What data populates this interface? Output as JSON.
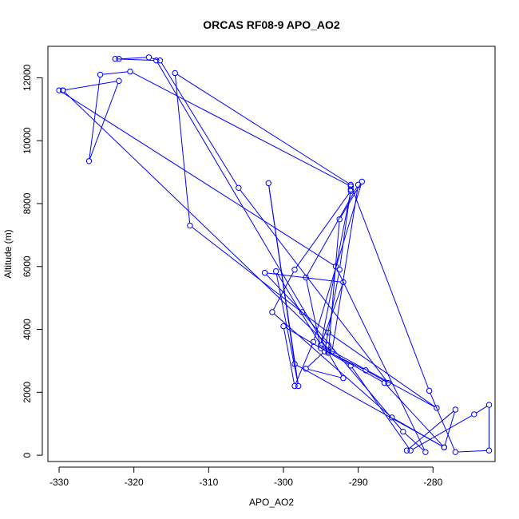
{
  "chart_data": {
    "type": "line",
    "title": "ORCAS RF08-9 APO_AO2",
    "xlabel": "APO_AO2",
    "ylabel": "Altitude (m)",
    "xlim": [
      -331.5,
      -271.7
    ],
    "ylim": [
      -200,
      13000
    ],
    "xticks": [
      -330,
      -320,
      -310,
      -300,
      -290,
      -280
    ],
    "yticks": [
      0,
      2000,
      4000,
      6000,
      8000,
      10000,
      12000
    ],
    "series": [
      {
        "color": "#0000ff",
        "marker": "open-circle",
        "points": [
          [
            -329.5,
            11600
          ],
          [
            -322.0,
            11900
          ],
          [
            -326.0,
            9350
          ],
          [
            -324.5,
            12100
          ],
          [
            -320.5,
            12200
          ],
          [
            -291.0,
            8550
          ],
          [
            -291.0,
            8450
          ],
          [
            -292.5,
            5900
          ],
          [
            -294.5,
            3300
          ],
          [
            -297.0,
            2750
          ],
          [
            -292.0,
            2450
          ],
          [
            -294.0,
            3250
          ],
          [
            -292.5,
            7500
          ],
          [
            -289.5,
            8700
          ],
          [
            -296.0,
            3600
          ],
          [
            -298.5,
            2200
          ],
          [
            -300.0,
            4100
          ],
          [
            -291.0,
            2850
          ],
          [
            -283.0,
            150
          ],
          [
            -274.5,
            1300
          ],
          [
            -272.5,
            1600
          ],
          [
            -272.5,
            150
          ],
          [
            -277.0,
            100
          ],
          [
            -280.5,
            2050
          ],
          [
            -291.0,
            8600
          ],
          [
            -314.5,
            12150
          ],
          [
            -312.5,
            7300
          ],
          [
            -294.0,
            3900
          ],
          [
            -279.5,
            1500
          ],
          [
            -295.0,
            3500
          ],
          [
            -291.0,
            8400
          ],
          [
            -298.5,
            5900
          ],
          [
            -301.5,
            4550
          ],
          [
            -285.5,
            1200
          ],
          [
            -278.5,
            250
          ],
          [
            -298.5,
            2900
          ],
          [
            -302.0,
            8650
          ],
          [
            -298.0,
            2200
          ],
          [
            -301.0,
            5850
          ],
          [
            -295.0,
            3500
          ],
          [
            -292.0,
            5500
          ],
          [
            -302.5,
            5800
          ],
          [
            -297.5,
            4550
          ],
          [
            -284.0,
            750
          ],
          [
            -281.0,
            100
          ],
          [
            -293.0,
            6000
          ],
          [
            -330.0,
            11600
          ],
          [
            -329.5,
            11600
          ],
          [
            -294.0,
            3500
          ],
          [
            -293.5,
            3300
          ],
          [
            -290.0,
            8600
          ],
          [
            -297.0,
            5650
          ],
          [
            -295.0,
            3400
          ],
          [
            -289.0,
            2700
          ],
          [
            -286.0,
            2300
          ],
          [
            -306.0,
            8500
          ],
          [
            -316.5,
            12550
          ],
          [
            -318.0,
            12650
          ],
          [
            -322.0,
            12600
          ],
          [
            -322.5,
            12600
          ],
          [
            -317.0,
            12550
          ],
          [
            -294.0,
            3300
          ],
          [
            -286.5,
            2300
          ],
          [
            -278.5,
            250
          ],
          [
            -277.0,
            1450
          ],
          [
            -283.5,
            150
          ]
        ]
      }
    ]
  }
}
